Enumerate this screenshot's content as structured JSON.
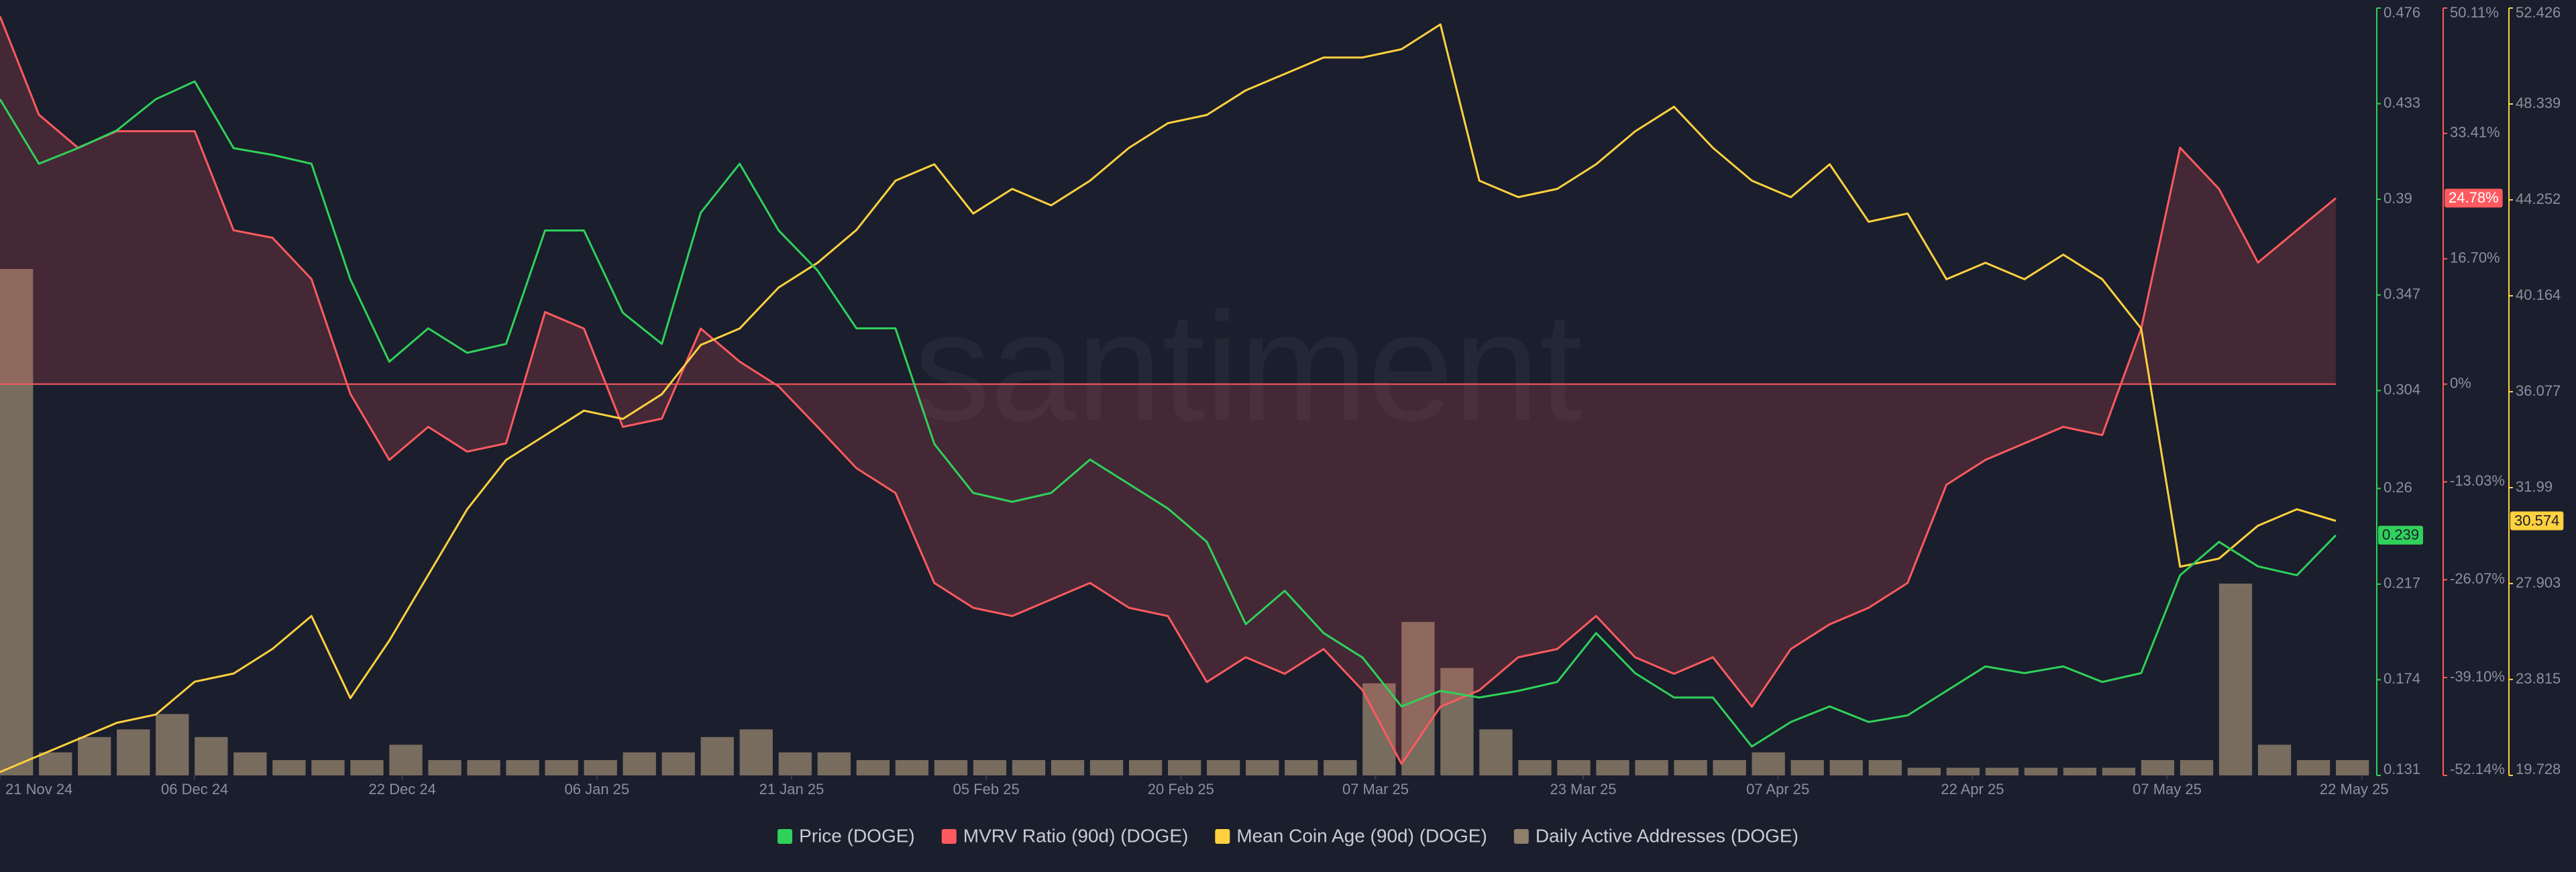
{
  "chart_data": {
    "type": "line",
    "watermark": "santiment",
    "x": [
      "2024-11-21",
      "2024-11-24",
      "2024-11-27",
      "2024-11-30",
      "2024-12-03",
      "2024-12-06",
      "2024-12-09",
      "2024-12-12",
      "2024-12-15",
      "2024-12-18",
      "2024-12-21",
      "2024-12-24",
      "2024-12-27",
      "2024-12-30",
      "2025-01-02",
      "2025-01-05",
      "2025-01-08",
      "2025-01-11",
      "2025-01-14",
      "2025-01-17",
      "2025-01-20",
      "2025-01-23",
      "2025-01-26",
      "2025-01-29",
      "2025-02-01",
      "2025-02-04",
      "2025-02-07",
      "2025-02-10",
      "2025-02-13",
      "2025-02-16",
      "2025-02-19",
      "2025-02-22",
      "2025-02-25",
      "2025-02-28",
      "2025-03-03",
      "2025-03-06",
      "2025-03-09",
      "2025-03-12",
      "2025-03-15",
      "2025-03-18",
      "2025-03-21",
      "2025-03-24",
      "2025-03-27",
      "2025-03-30",
      "2025-04-02",
      "2025-04-05",
      "2025-04-08",
      "2025-04-11",
      "2025-04-14",
      "2025-04-17",
      "2025-04-20",
      "2025-04-23",
      "2025-04-26",
      "2025-04-29",
      "2025-05-02",
      "2025-05-05",
      "2025-05-08",
      "2025-05-11",
      "2025-05-14",
      "2025-05-17",
      "2025-05-20"
    ],
    "xlim": [
      "2024-11-21",
      "2025-05-23"
    ],
    "xticks": [
      {
        "value": "2024-11-21",
        "label": "21 Nov 24"
      },
      {
        "value": "2024-12-06",
        "label": "06 Dec 24"
      },
      {
        "value": "2024-12-22",
        "label": "22 Dec 24"
      },
      {
        "value": "2025-01-06",
        "label": "06 Jan 25"
      },
      {
        "value": "2025-01-21",
        "label": "21 Jan 25"
      },
      {
        "value": "2025-02-05",
        "label": "05 Feb 25"
      },
      {
        "value": "2025-02-20",
        "label": "20 Feb 25"
      },
      {
        "value": "2025-03-07",
        "label": "07 Mar 25"
      },
      {
        "value": "2025-03-23",
        "label": "23 Mar 25"
      },
      {
        "value": "2025-04-07",
        "label": "07 Apr 25"
      },
      {
        "value": "2025-04-22",
        "label": "22 Apr 25"
      },
      {
        "value": "2025-05-07",
        "label": "07 May 25"
      },
      {
        "value": "2025-05-22",
        "label": "22 May 25"
      }
    ],
    "ylim": [
      0.131,
      0.476
    ],
    "yticks": [
      0.131,
      0.174,
      0.217,
      0.26,
      0.304,
      0.347,
      0.39,
      0.433,
      0.476
    ],
    "y2lim": [
      -52.14,
      50.11
    ],
    "y2ticks": [
      {
        "value": -52.14,
        "label": "-52.14%"
      },
      {
        "value": -39.1,
        "label": "-39.10%"
      },
      {
        "value": -26.07,
        "label": "-26.07%"
      },
      {
        "value": -13.03,
        "label": "-13.03%"
      },
      {
        "value": 0,
        "label": "0%"
      },
      {
        "value": 16.7,
        "label": "16.70%"
      },
      {
        "value": 33.41,
        "label": "33.41%"
      },
      {
        "value": 50.11,
        "label": "50.11%"
      }
    ],
    "y3lim": [
      19.728,
      52.426
    ],
    "y3ticks": [
      19.728,
      23.815,
      27.903,
      31.99,
      36.077,
      40.164,
      44.252,
      48.339,
      52.426
    ],
    "y4lim": [
      0,
      100
    ],
    "series": [
      {
        "name": "Price (DOGE)",
        "color": "#2fd15a",
        "axis": "y",
        "current_label": "0.239",
        "values": [
          0.435,
          0.406,
          0.413,
          0.421,
          0.435,
          0.443,
          0.413,
          0.41,
          0.406,
          0.354,
          0.317,
          0.332,
          0.321,
          0.325,
          0.376,
          0.376,
          0.339,
          0.325,
          0.384,
          0.406,
          0.376,
          0.358,
          0.332,
          0.332,
          0.28,
          0.258,
          0.254,
          0.258,
          0.273,
          0.262,
          0.251,
          0.236,
          0.199,
          0.214,
          0.195,
          0.184,
          0.162,
          0.169,
          0.166,
          0.169,
          0.173,
          0.195,
          0.177,
          0.166,
          0.166,
          0.144,
          0.155,
          0.162,
          0.155,
          0.158,
          0.169,
          0.18,
          0.177,
          0.18,
          0.173,
          0.177,
          0.221,
          0.236,
          0.225,
          0.221,
          0.239
        ]
      },
      {
        "name": "MVRV Ratio (90d) (DOGE)",
        "color": "#ff5a5f",
        "axis": "y2",
        "current_label": "24.78%",
        "values": [
          49.0,
          35.9,
          31.5,
          33.7,
          33.7,
          33.7,
          20.5,
          19.5,
          14.0,
          -1.3,
          -10.1,
          -5.7,
          -9.0,
          -7.9,
          9.6,
          7.4,
          -5.7,
          -4.6,
          7.4,
          3.0,
          -0.3,
          -5.7,
          -11.2,
          -14.5,
          -26.5,
          -29.8,
          -30.9,
          -28.7,
          -26.5,
          -29.8,
          -30.9,
          -39.7,
          -36.4,
          -38.6,
          -35.3,
          -40.8,
          -50.6,
          -43.0,
          -40.8,
          -36.4,
          -35.3,
          -30.9,
          -36.4,
          -38.6,
          -36.4,
          -43.0,
          -35.3,
          -32.0,
          -29.8,
          -26.5,
          -13.4,
          -10.1,
          -7.9,
          -5.7,
          -6.8,
          7.4,
          31.5,
          26.0,
          16.2,
          20.5,
          24.78
        ]
      },
      {
        "name": "Mean Coin Age (90d) (DOGE)",
        "color": "#ffd13f",
        "axis": "y3",
        "current_label": "30.574",
        "values": [
          19.87,
          20.57,
          21.27,
          21.97,
          22.32,
          23.72,
          24.07,
          25.12,
          26.52,
          23.02,
          25.47,
          28.27,
          31.07,
          33.17,
          34.22,
          35.27,
          34.92,
          35.97,
          38.07,
          38.77,
          40.52,
          41.57,
          42.97,
          45.07,
          45.77,
          43.67,
          44.72,
          44.02,
          45.07,
          46.47,
          47.52,
          47.87,
          48.92,
          49.62,
          50.32,
          50.32,
          50.67,
          51.73,
          45.07,
          44.37,
          44.72,
          45.77,
          47.17,
          48.22,
          46.47,
          45.07,
          44.37,
          45.77,
          43.32,
          43.67,
          40.87,
          41.57,
          40.87,
          41.92,
          40.87,
          38.77,
          28.62,
          28.97,
          30.37,
          31.07,
          30.574
        ]
      },
      {
        "name": "Daily Active Addresses (DOGE)",
        "color": "#8f7f6c",
        "axis": "y4",
        "type": "bar",
        "values": [
          66,
          3,
          5,
          6,
          8,
          5,
          3,
          2,
          2,
          2,
          4,
          2,
          2,
          2,
          2,
          2,
          3,
          3,
          5,
          6,
          3,
          3,
          2,
          2,
          2,
          2,
          2,
          2,
          2,
          2,
          2,
          2,
          2,
          2,
          2,
          12,
          20,
          14,
          6,
          2,
          2,
          2,
          2,
          2,
          2,
          3,
          2,
          2,
          2,
          1,
          1,
          1,
          1,
          1,
          1,
          2,
          2,
          25,
          4,
          2,
          2
        ]
      }
    ]
  }
}
